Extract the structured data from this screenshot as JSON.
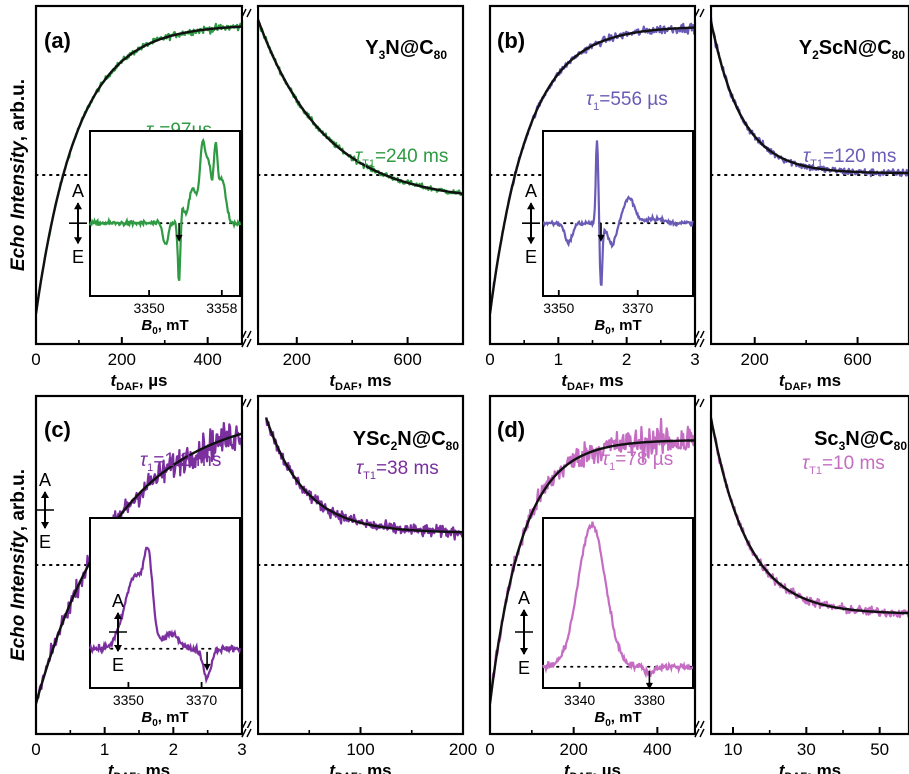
{
  "figure": {
    "ylabel_italic": "Echo Intensity",
    "ylabel_unit": ", arb.u.",
    "inset_xlabel_sym": "B",
    "inset_xlabel_sub": "0",
    "inset_xlabel_unit": ", mT",
    "absorption_label": "A",
    "emission_label": "E",
    "colors": {
      "a": "#2e9a42",
      "b": "#6a5bb6",
      "c": "#7b2f9f",
      "d": "#c46dc3",
      "fit": "#111111"
    }
  },
  "chart_data": [
    {
      "panel": "(a)",
      "compound": [
        "Y",
        "3",
        "N@C",
        "80"
      ],
      "left": {
        "type": "line",
        "xlabel": [
          "t",
          "DAF",
          ", µs"
        ],
        "xlim": [
          0,
          480
        ],
        "xticks": [
          "0",
          "200",
          "400"
        ],
        "xtick_values": [
          0,
          200,
          400
        ],
        "model": "rise",
        "y0": 0.09,
        "yinf": 0.945,
        "tau": 97,
        "noise": 0.012,
        "label": [
          "τ",
          "1",
          "=97µs"
        ]
      },
      "right": {
        "type": "line",
        "xlabel": [
          "t",
          "DAF",
          ",  ms"
        ],
        "xlim": [
          60,
          800
        ],
        "xticks": [
          "200",
          "600"
        ],
        "xtick_values": [
          200,
          600
        ],
        "model": "decay",
        "t0": 60,
        "yinf": 0.42,
        "amp": 0.54,
        "tau": 240,
        "noise": 0.008,
        "label": [
          "τ",
          "T1",
          "=240 ms"
        ]
      },
      "inset": {
        "xticks": [
          "3350",
          "3358"
        ],
        "xtick_values": [
          3350,
          3358
        ],
        "xlim": [
          3343.5,
          3360
        ],
        "ylim": [
          -0.75,
          0.95
        ],
        "arrow_x": 3353.3,
        "features": [
          [
            3351.8,
            -0.22,
            0.4
          ],
          [
            3353.3,
            -0.68,
            0.2
          ],
          [
            3353.6,
            0.15,
            0.35
          ],
          [
            3354.8,
            0.35,
            0.6
          ],
          [
            3355.9,
            0.82,
            0.45
          ],
          [
            3357.3,
            0.68,
            0.3
          ],
          [
            3358.0,
            0.45,
            0.6
          ],
          [
            3356.6,
            0.55,
            0.4
          ]
        ]
      },
      "baseline": 0.5
    },
    {
      "panel": "(b)",
      "compound": [
        "Y",
        "2",
        "ScN@C",
        "80"
      ],
      "left": {
        "type": "line",
        "xlabel": [
          "t",
          "DAF",
          ", ms"
        ],
        "xlim": [
          0,
          3
        ],
        "xticks": [
          "0",
          "1",
          "2",
          "3"
        ],
        "xtick_values": [
          0,
          1,
          2,
          3
        ],
        "model": "rise",
        "y0": 0.09,
        "yinf": 0.94,
        "tau": 0.556,
        "noise": 0.015,
        "label": [
          "τ",
          "1",
          "=556 µs"
        ]
      },
      "right": {
        "type": "line",
        "xlabel": [
          "t",
          "DAF",
          ",  ms"
        ],
        "xlim": [
          30,
          800
        ],
        "xticks": [
          "200",
          "600"
        ],
        "xtick_values": [
          200,
          600
        ],
        "model": "decay",
        "t0": 30,
        "yinf": 0.505,
        "amp": 0.45,
        "tau": 120,
        "noise": 0.011,
        "label": [
          "τ",
          "T1",
          "=120 ms"
        ]
      },
      "inset": {
        "xticks": [
          "3350",
          "3370"
        ],
        "xtick_values": [
          3350,
          3370
        ],
        "xlim": [
          3346,
          3384
        ],
        "ylim": [
          -0.75,
          0.95
        ],
        "arrow_x": 3360.7,
        "features": [
          [
            3352.5,
            -0.2,
            1.3
          ],
          [
            3359.7,
            0.85,
            0.45
          ],
          [
            3360.7,
            -0.68,
            0.45
          ],
          [
            3363.5,
            -0.22,
            1.5
          ],
          [
            3367.8,
            0.26,
            2.0
          ],
          [
            3374,
            0.05,
            3.0
          ]
        ]
      },
      "baseline": 0.5
    },
    {
      "panel": "(c)",
      "compound": [
        "YSc",
        "2",
        "N@C",
        "80"
      ],
      "left": {
        "type": "line",
        "xlabel": [
          "t",
          "DAF",
          ", ms"
        ],
        "xlim": [
          0,
          3
        ],
        "xticks": [
          "0",
          "1",
          "2",
          "3"
        ],
        "xtick_values": [
          0,
          1,
          2,
          3
        ],
        "model": "rise",
        "y0": 0.09,
        "yinf": 0.96,
        "tau": 1.2,
        "noise": 0.05,
        "label": [
          "τ",
          "1",
          "=1.2 ms"
        ]
      },
      "right": {
        "type": "line",
        "xlabel": [
          "t",
          "DAF",
          ",  ms"
        ],
        "xlim": [
          0,
          200
        ],
        "xticks": [
          "100",
          "200"
        ],
        "xtick_values": [
          100,
          200
        ],
        "model": "decay",
        "t0": 8,
        "yinf": 0.595,
        "amp": 0.34,
        "tau": 38,
        "noise": 0.018,
        "label": [
          "τ",
          "T1",
          "=38 ms"
        ]
      },
      "inset": {
        "xticks": [
          "3350",
          "3370"
        ],
        "xtick_values": [
          3350,
          3370
        ],
        "xlim": [
          3339.5,
          3380.5
        ],
        "ylim": [
          -0.3,
          1.0
        ],
        "arrow_x": 3371.5,
        "features": [
          [
            3352,
            0.56,
            4.2
          ],
          [
            3355.5,
            0.48,
            1.6
          ],
          [
            3362,
            0.12,
            2.5
          ],
          [
            3371.5,
            -0.22,
            1.5
          ]
        ]
      },
      "baseline": 0.5
    },
    {
      "panel": "(d)",
      "compound": [
        "Sc",
        "3",
        "N@C",
        "80"
      ],
      "left": {
        "type": "line",
        "xlabel": [
          "t",
          "DAF",
          ", µs"
        ],
        "xlim": [
          0,
          490
        ],
        "xticks": [
          "0",
          "200",
          "400"
        ],
        "xtick_values": [
          0,
          200,
          400
        ],
        "model": "rise",
        "y0": 0.09,
        "yinf": 0.87,
        "tau": 78,
        "noise": 0.055,
        "label": [
          "τ",
          "1",
          "=78 µs"
        ]
      },
      "right": {
        "type": "line",
        "xlabel": [
          "t",
          "DAF",
          ",  ms"
        ],
        "xlim": [
          4,
          58
        ],
        "xticks": [
          "10",
          "30",
          "50"
        ],
        "xtick_values": [
          10,
          30,
          50
        ],
        "model": "decay",
        "t0": 4,
        "yinf": 0.355,
        "amp": 0.58,
        "tau": 10,
        "noise": 0.014,
        "label": [
          "τ",
          "T1",
          "=10 ms"
        ]
      },
      "inset": {
        "xticks": [
          "3340",
          "3380"
        ],
        "xtick_values": [
          3340,
          3380
        ],
        "xlim": [
          3319,
          3405
        ],
        "ylim": [
          -0.15,
          1.05
        ],
        "arrow_x": 3380,
        "features": [
          [
            3347,
            1.0,
            11
          ],
          [
            3380,
            -0.05,
            3
          ]
        ]
      },
      "baseline": 0.5
    }
  ]
}
